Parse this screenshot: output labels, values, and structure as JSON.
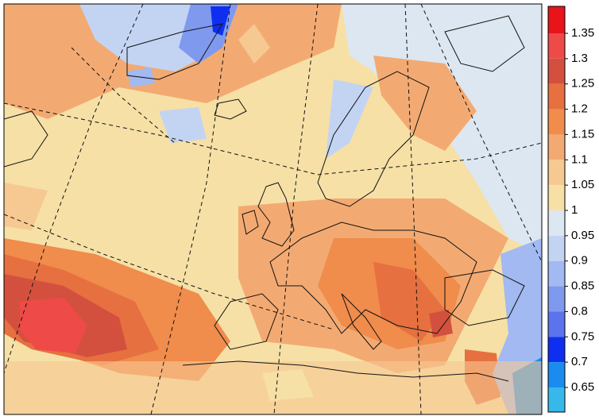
{
  "colorbar": {
    "ticks": [
      1.35,
      1.3,
      1.25,
      1.2,
      1.15,
      1.1,
      1.05,
      1,
      0.95,
      0.9,
      0.85,
      0.8,
      0.75,
      0.7,
      0.65
    ],
    "colors": [
      "#e8141a",
      "#ee4a48",
      "#d4503e",
      "#e6703f",
      "#f08c4c",
      "#f3aa72",
      "#f6c892",
      "#f6e0a6",
      "#dde7f1",
      "#c3d4f3",
      "#a2b9f1",
      "#7f99ee",
      "#5b73ec",
      "#0f2ff0",
      "#1a8cf0",
      "#36b9ea"
    ]
  }
}
